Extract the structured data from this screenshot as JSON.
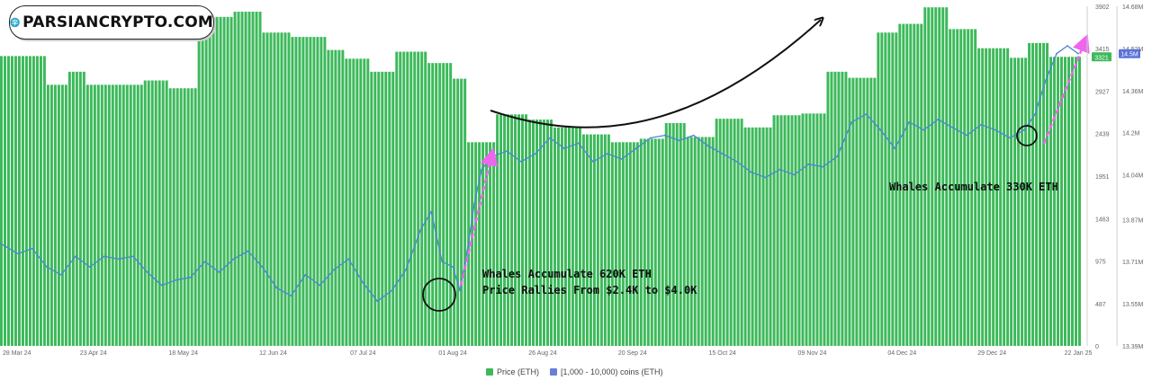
{
  "logo": {
    "text": "PARSIANCRYPTO.COM",
    "icon": "tree-network-icon"
  },
  "legend": [
    {
      "label": "Price (ETH)",
      "color": "#3cb95a"
    },
    {
      "label": "[1,000 - 10,000) coins (ETH)",
      "color": "#6a7fd6"
    }
  ],
  "colors": {
    "bars": "#3cb95a",
    "bar_gap": "#e9f6ec",
    "line": "#4a86d4",
    "annotation_arrow": "#ee66ee",
    "curve": "#111111",
    "circle": "#111111"
  },
  "badges": {
    "price_badge": "3321",
    "holdings_badge": "14.5M"
  },
  "annotations": [
    {
      "text": "Whales Accumulate 620K ETH"
    },
    {
      "text": "Price Rallies From $2.4K to $4.0K"
    },
    {
      "text": "Whales Accumulate 330K ETH"
    }
  ],
  "chart_data": {
    "type": "bar",
    "x_ticks": [
      "28 Mar 24",
      "23 Apr 24",
      "18 May 24",
      "12 Jun 24",
      "07 Jul 24",
      "01 Aug 24",
      "26 Aug 24",
      "20 Sep 24",
      "15 Oct 24",
      "09 Nov 24",
      "04 Dec 24",
      "29 Dec 24",
      "22 Jan 25"
    ],
    "y_left_ticks": [
      "0",
      "487",
      "975",
      "1463",
      "1951",
      "2439",
      "2927",
      "3415",
      "3902"
    ],
    "y_right_ticks": [
      "13.39M",
      "13.55M",
      "13.71M",
      "13.87M",
      "14.04M",
      "14.2M",
      "14.36M",
      "14.52M",
      "14.68M"
    ],
    "y_left_range": [
      0,
      3902
    ],
    "y_right_range": [
      13.39,
      14.68
    ],
    "grid": false,
    "legend_position": "bottom-center",
    "series": [
      {
        "name": "Price (ETH)",
        "axis": "left",
        "segments": [
          {
            "from": "2024-03-28",
            "to": "2024-04-09",
            "value": 3330
          },
          {
            "from": "2024-04-10",
            "to": "2024-04-15",
            "value": 3000
          },
          {
            "from": "2024-04-16",
            "to": "2024-04-20",
            "value": 3150
          },
          {
            "from": "2024-04-21",
            "to": "2024-05-06",
            "value": 3000
          },
          {
            "from": "2024-05-07",
            "to": "2024-05-13",
            "value": 3050
          },
          {
            "from": "2024-05-14",
            "to": "2024-05-21",
            "value": 2960
          },
          {
            "from": "2024-05-22",
            "to": "2024-05-31",
            "value": 3780
          },
          {
            "from": "2024-06-01",
            "to": "2024-06-08",
            "value": 3840
          },
          {
            "from": "2024-06-09",
            "to": "2024-06-16",
            "value": 3600
          },
          {
            "from": "2024-06-17",
            "to": "2024-06-26",
            "value": 3550
          },
          {
            "from": "2024-06-27",
            "to": "2024-07-01",
            "value": 3400
          },
          {
            "from": "2024-07-02",
            "to": "2024-07-08",
            "value": 3300
          },
          {
            "from": "2024-07-09",
            "to": "2024-07-15",
            "value": 3150
          },
          {
            "from": "2024-07-16",
            "to": "2024-07-24",
            "value": 3380
          },
          {
            "from": "2024-07-25",
            "to": "2024-07-31",
            "value": 3250
          },
          {
            "from": "2024-08-01",
            "to": "2024-08-04",
            "value": 3070
          },
          {
            "from": "2024-08-05",
            "to": "2024-08-12",
            "value": 2340
          },
          {
            "from": "2024-08-13",
            "to": "2024-08-21",
            "value": 2660
          },
          {
            "from": "2024-08-22",
            "to": "2024-08-28",
            "value": 2600
          },
          {
            "from": "2024-08-29",
            "to": "2024-09-05",
            "value": 2510
          },
          {
            "from": "2024-09-06",
            "to": "2024-09-13",
            "value": 2430
          },
          {
            "from": "2024-09-14",
            "to": "2024-09-21",
            "value": 2340
          },
          {
            "from": "2024-09-22",
            "to": "2024-09-28",
            "value": 2380
          },
          {
            "from": "2024-09-29",
            "to": "2024-10-04",
            "value": 2560
          },
          {
            "from": "2024-10-05",
            "to": "2024-10-12",
            "value": 2400
          },
          {
            "from": "2024-10-13",
            "to": "2024-10-20",
            "value": 2610
          },
          {
            "from": "2024-10-21",
            "to": "2024-10-28",
            "value": 2510
          },
          {
            "from": "2024-10-29",
            "to": "2024-11-05",
            "value": 2650
          },
          {
            "from": "2024-11-06",
            "to": "2024-11-12",
            "value": 2670
          },
          {
            "from": "2024-11-13",
            "to": "2024-11-18",
            "value": 3150
          },
          {
            "from": "2024-11-19",
            "to": "2024-11-26",
            "value": 3080
          },
          {
            "from": "2024-11-27",
            "to": "2024-12-02",
            "value": 3600
          },
          {
            "from": "2024-12-03",
            "to": "2024-12-09",
            "value": 3700
          },
          {
            "from": "2024-12-10",
            "to": "2024-12-16",
            "value": 3890
          },
          {
            "from": "2024-12-17",
            "to": "2024-12-24",
            "value": 3640
          },
          {
            "from": "2024-12-25",
            "to": "2025-01-02",
            "value": 3420
          },
          {
            "from": "2025-01-03",
            "to": "2025-01-07",
            "value": 3310
          },
          {
            "from": "2025-01-08",
            "to": "2025-01-13",
            "value": 3480
          },
          {
            "from": "2025-01-14",
            "to": "2025-01-22",
            "value": 3321
          }
        ]
      },
      {
        "name": "[1,000 - 10,000) coins (ETH)",
        "axis": "right",
        "unit": "M",
        "points": [
          [
            "2024-03-28",
            13.78
          ],
          [
            "2024-04-02",
            13.74
          ],
          [
            "2024-04-06",
            13.76
          ],
          [
            "2024-04-10",
            13.69
          ],
          [
            "2024-04-14",
            13.66
          ],
          [
            "2024-04-18",
            13.73
          ],
          [
            "2024-04-22",
            13.69
          ],
          [
            "2024-04-26",
            13.73
          ],
          [
            "2024-04-30",
            13.72
          ],
          [
            "2024-05-04",
            13.73
          ],
          [
            "2024-05-08",
            13.67
          ],
          [
            "2024-05-12",
            13.62
          ],
          [
            "2024-05-16",
            13.64
          ],
          [
            "2024-05-20",
            13.65
          ],
          [
            "2024-05-24",
            13.71
          ],
          [
            "2024-05-28",
            13.67
          ],
          [
            "2024-06-01",
            13.72
          ],
          [
            "2024-06-05",
            13.75
          ],
          [
            "2024-06-09",
            13.69
          ],
          [
            "2024-06-13",
            13.61
          ],
          [
            "2024-06-17",
            13.58
          ],
          [
            "2024-06-21",
            13.66
          ],
          [
            "2024-06-25",
            13.62
          ],
          [
            "2024-06-29",
            13.68
          ],
          [
            "2024-07-03",
            13.72
          ],
          [
            "2024-07-07",
            13.63
          ],
          [
            "2024-07-11",
            13.56
          ],
          [
            "2024-07-15",
            13.6
          ],
          [
            "2024-07-19",
            13.68
          ],
          [
            "2024-07-23",
            13.83
          ],
          [
            "2024-07-26",
            13.9
          ],
          [
            "2024-07-29",
            13.71
          ],
          [
            "2024-08-01",
            13.69
          ],
          [
            "2024-08-03",
            13.6
          ],
          [
            "2024-08-05",
            13.75
          ],
          [
            "2024-08-07",
            13.93
          ],
          [
            "2024-08-09",
            14.06
          ],
          [
            "2024-08-12",
            14.11
          ],
          [
            "2024-08-16",
            14.13
          ],
          [
            "2024-08-20",
            14.09
          ],
          [
            "2024-08-24",
            14.12
          ],
          [
            "2024-08-28",
            14.18
          ],
          [
            "2024-09-01",
            14.14
          ],
          [
            "2024-09-05",
            14.16
          ],
          [
            "2024-09-09",
            14.09
          ],
          [
            "2024-09-13",
            14.12
          ],
          [
            "2024-09-17",
            14.1
          ],
          [
            "2024-09-21",
            14.14
          ],
          [
            "2024-09-25",
            14.18
          ],
          [
            "2024-09-29",
            14.19
          ],
          [
            "2024-10-03",
            14.17
          ],
          [
            "2024-10-07",
            14.19
          ],
          [
            "2024-10-11",
            14.15
          ],
          [
            "2024-10-15",
            14.12
          ],
          [
            "2024-10-19",
            14.09
          ],
          [
            "2024-10-23",
            14.05
          ],
          [
            "2024-10-27",
            14.03
          ],
          [
            "2024-10-31",
            14.06
          ],
          [
            "2024-11-04",
            14.04
          ],
          [
            "2024-11-08",
            14.08
          ],
          [
            "2024-11-12",
            14.07
          ],
          [
            "2024-11-16",
            14.11
          ],
          [
            "2024-11-20",
            14.24
          ],
          [
            "2024-11-24",
            14.27
          ],
          [
            "2024-11-28",
            14.21
          ],
          [
            "2024-12-02",
            14.14
          ],
          [
            "2024-12-06",
            14.24
          ],
          [
            "2024-12-10",
            14.21
          ],
          [
            "2024-12-14",
            14.25
          ],
          [
            "2024-12-18",
            14.22
          ],
          [
            "2024-12-22",
            14.19
          ],
          [
            "2024-12-26",
            14.23
          ],
          [
            "2024-12-30",
            14.21
          ],
          [
            "2025-01-03",
            14.18
          ],
          [
            "2025-01-07",
            14.21
          ],
          [
            "2025-01-10",
            14.27
          ],
          [
            "2025-01-13",
            14.4
          ],
          [
            "2025-01-16",
            14.5
          ],
          [
            "2025-01-19",
            14.53
          ],
          [
            "2025-01-22",
            14.5
          ]
        ]
      }
    ]
  }
}
